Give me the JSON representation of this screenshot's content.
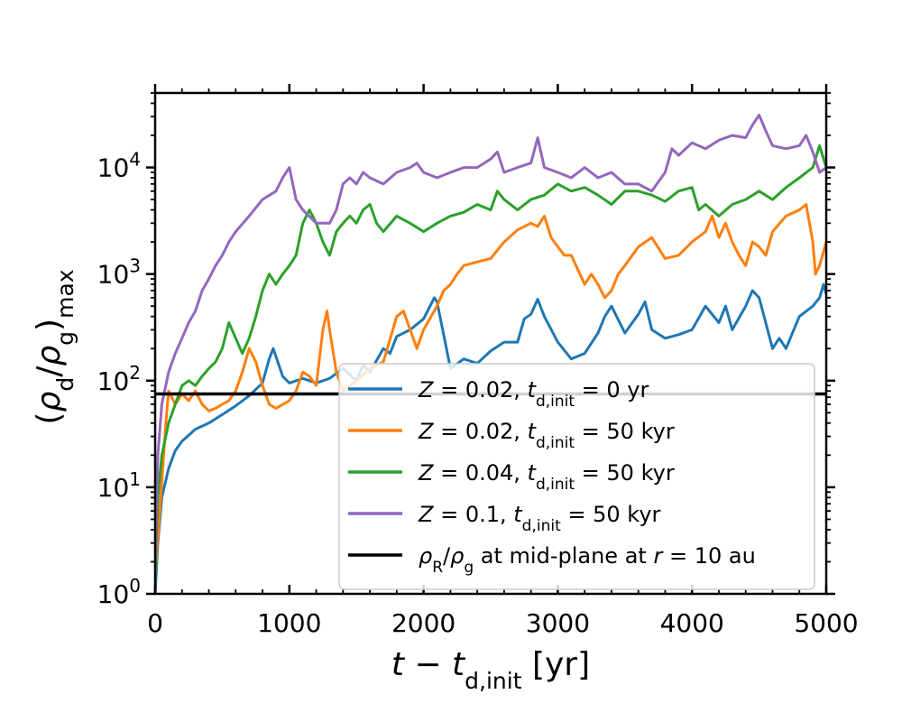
{
  "chart_data": {
    "type": "line",
    "title": "",
    "xlabel": "t − t_d,init [yr]",
    "ylabel": "(ρ_d/ρ_g)_max",
    "yscale": "log",
    "xlim": [
      0,
      5000
    ],
    "ylim": [
      1,
      50000
    ],
    "xticks": [
      0,
      1000,
      2000,
      3000,
      4000,
      5000
    ],
    "xtick_labels": [
      "0",
      "1000",
      "2000",
      "3000",
      "4000",
      "5000"
    ],
    "yticks": [
      1,
      10,
      100,
      1000,
      10000
    ],
    "grid": false,
    "legend_position": "lower-right",
    "threshold_line": {
      "name": "ρ_R/ρ_g at mid-plane at r = 10 au",
      "value": 75,
      "color": "#000000"
    },
    "series": [
      {
        "name": "Z = 0.02, t_d,init = 0 yr",
        "color": "#1f77b4",
        "points": [
          [
            0,
            1
          ],
          [
            20,
            3
          ],
          [
            50,
            8
          ],
          [
            100,
            15
          ],
          [
            150,
            22
          ],
          [
            200,
            27
          ],
          [
            300,
            35
          ],
          [
            400,
            40
          ],
          [
            500,
            48
          ],
          [
            600,
            58
          ],
          [
            700,
            72
          ],
          [
            800,
            95
          ],
          [
            850,
            160
          ],
          [
            880,
            200
          ],
          [
            950,
            110
          ],
          [
            1000,
            95
          ],
          [
            1100,
            105
          ],
          [
            1200,
            95
          ],
          [
            1300,
            105
          ],
          [
            1400,
            130
          ],
          [
            1500,
            100
          ],
          [
            1550,
            140
          ],
          [
            1600,
            120
          ],
          [
            1700,
            200
          ],
          [
            1750,
            180
          ],
          [
            1800,
            260
          ],
          [
            1900,
            300
          ],
          [
            2000,
            380
          ],
          [
            2080,
            600
          ],
          [
            2100,
            550
          ],
          [
            2200,
            130
          ],
          [
            2300,
            160
          ],
          [
            2400,
            145
          ],
          [
            2500,
            190
          ],
          [
            2600,
            230
          ],
          [
            2700,
            230
          ],
          [
            2750,
            380
          ],
          [
            2800,
            420
          ],
          [
            2850,
            580
          ],
          [
            2900,
            400
          ],
          [
            3000,
            230
          ],
          [
            3100,
            160
          ],
          [
            3200,
            180
          ],
          [
            3300,
            280
          ],
          [
            3350,
            400
          ],
          [
            3400,
            500
          ],
          [
            3500,
            280
          ],
          [
            3600,
            420
          ],
          [
            3650,
            550
          ],
          [
            3700,
            300
          ],
          [
            3800,
            250
          ],
          [
            3900,
            270
          ],
          [
            4000,
            300
          ],
          [
            4100,
            500
          ],
          [
            4200,
            350
          ],
          [
            4250,
            500
          ],
          [
            4300,
            300
          ],
          [
            4400,
            500
          ],
          [
            4450,
            700
          ],
          [
            4500,
            600
          ],
          [
            4600,
            200
          ],
          [
            4650,
            250
          ],
          [
            4700,
            200
          ],
          [
            4800,
            400
          ],
          [
            4900,
            500
          ],
          [
            4950,
            600
          ],
          [
            4980,
            800
          ],
          [
            5000,
            650
          ]
        ]
      },
      {
        "name": "Z = 0.02, t_d,init = 50 kyr",
        "color": "#ff7f0e",
        "points": [
          [
            0,
            1.5
          ],
          [
            30,
            5
          ],
          [
            80,
            40
          ],
          [
            100,
            80
          ],
          [
            150,
            60
          ],
          [
            200,
            75
          ],
          [
            250,
            65
          ],
          [
            300,
            80
          ],
          [
            350,
            60
          ],
          [
            400,
            52
          ],
          [
            450,
            55
          ],
          [
            500,
            60
          ],
          [
            550,
            65
          ],
          [
            600,
            80
          ],
          [
            650,
            120
          ],
          [
            700,
            200
          ],
          [
            750,
            150
          ],
          [
            800,
            90
          ],
          [
            850,
            60
          ],
          [
            900,
            55
          ],
          [
            1000,
            65
          ],
          [
            1050,
            80
          ],
          [
            1100,
            120
          ],
          [
            1150,
            110
          ],
          [
            1200,
            90
          ],
          [
            1250,
            300
          ],
          [
            1280,
            450
          ],
          [
            1300,
            300
          ],
          [
            1350,
            120
          ],
          [
            1400,
            80
          ],
          [
            1500,
            100
          ],
          [
            1600,
            130
          ],
          [
            1700,
            150
          ],
          [
            1800,
            400
          ],
          [
            1850,
            450
          ],
          [
            1900,
            300
          ],
          [
            1950,
            200
          ],
          [
            2000,
            300
          ],
          [
            2100,
            500
          ],
          [
            2150,
            700
          ],
          [
            2200,
            800
          ],
          [
            2250,
            1000
          ],
          [
            2300,
            1200
          ],
          [
            2400,
            1300
          ],
          [
            2500,
            1400
          ],
          [
            2600,
            2000
          ],
          [
            2700,
            2600
          ],
          [
            2800,
            3000
          ],
          [
            2850,
            2800
          ],
          [
            2900,
            3500
          ],
          [
            2950,
            2200
          ],
          [
            3000,
            1800
          ],
          [
            3050,
            1500
          ],
          [
            3100,
            1500
          ],
          [
            3200,
            800
          ],
          [
            3250,
            1000
          ],
          [
            3300,
            800
          ],
          [
            3350,
            600
          ],
          [
            3400,
            700
          ],
          [
            3450,
            1000
          ],
          [
            3500,
            1200
          ],
          [
            3600,
            1800
          ],
          [
            3700,
            2200
          ],
          [
            3800,
            1400
          ],
          [
            3900,
            1500
          ],
          [
            4000,
            2000
          ],
          [
            4100,
            2500
          ],
          [
            4150,
            3500
          ],
          [
            4200,
            2200
          ],
          [
            4250,
            3000
          ],
          [
            4300,
            2000
          ],
          [
            4350,
            1500
          ],
          [
            4400,
            1200
          ],
          [
            4450,
            2000
          ],
          [
            4500,
            1800
          ],
          [
            4550,
            1500
          ],
          [
            4600,
            2500
          ],
          [
            4700,
            3500
          ],
          [
            4800,
            4000
          ],
          [
            4850,
            4500
          ],
          [
            4900,
            2000
          ],
          [
            4920,
            1000
          ],
          [
            4950,
            1200
          ],
          [
            5000,
            2000
          ]
        ]
      },
      {
        "name": "Z = 0.04, t_d,init = 50 kyr",
        "color": "#2ca02c",
        "points": [
          [
            0,
            1.5
          ],
          [
            20,
            8
          ],
          [
            50,
            20
          ],
          [
            100,
            40
          ],
          [
            150,
            60
          ],
          [
            200,
            90
          ],
          [
            250,
            100
          ],
          [
            300,
            90
          ],
          [
            350,
            110
          ],
          [
            400,
            130
          ],
          [
            450,
            150
          ],
          [
            500,
            200
          ],
          [
            550,
            350
          ],
          [
            600,
            250
          ],
          [
            650,
            180
          ],
          [
            700,
            250
          ],
          [
            750,
            400
          ],
          [
            800,
            700
          ],
          [
            850,
            1000
          ],
          [
            900,
            800
          ],
          [
            950,
            1000
          ],
          [
            1000,
            1200
          ],
          [
            1050,
            1500
          ],
          [
            1100,
            3000
          ],
          [
            1150,
            4000
          ],
          [
            1200,
            3000
          ],
          [
            1250,
            2000
          ],
          [
            1300,
            1500
          ],
          [
            1350,
            2500
          ],
          [
            1400,
            3000
          ],
          [
            1450,
            3500
          ],
          [
            1500,
            3000
          ],
          [
            1550,
            4000
          ],
          [
            1600,
            4500
          ],
          [
            1650,
            3000
          ],
          [
            1700,
            2500
          ],
          [
            1800,
            3500
          ],
          [
            1900,
            3000
          ],
          [
            2000,
            2500
          ],
          [
            2100,
            3000
          ],
          [
            2200,
            3500
          ],
          [
            2300,
            3800
          ],
          [
            2400,
            4500
          ],
          [
            2500,
            4000
          ],
          [
            2550,
            6000
          ],
          [
            2600,
            5000
          ],
          [
            2700,
            4000
          ],
          [
            2800,
            5000
          ],
          [
            2900,
            5500
          ],
          [
            3000,
            7000
          ],
          [
            3100,
            6000
          ],
          [
            3200,
            6500
          ],
          [
            3300,
            5500
          ],
          [
            3400,
            4500
          ],
          [
            3500,
            6000
          ],
          [
            3600,
            6000
          ],
          [
            3700,
            5500
          ],
          [
            3800,
            4800
          ],
          [
            3900,
            6000
          ],
          [
            4000,
            6500
          ],
          [
            4050,
            4000
          ],
          [
            4100,
            4500
          ],
          [
            4200,
            3500
          ],
          [
            4300,
            4500
          ],
          [
            4400,
            5000
          ],
          [
            4500,
            6000
          ],
          [
            4600,
            5000
          ],
          [
            4700,
            6500
          ],
          [
            4800,
            8000
          ],
          [
            4900,
            10000
          ],
          [
            4950,
            16000
          ],
          [
            5000,
            10000
          ]
        ]
      },
      {
        "name": "Z = 0.1, t_d,init = 50 kyr",
        "color": "#9467bd",
        "points": [
          [
            0,
            2
          ],
          [
            20,
            20
          ],
          [
            50,
            60
          ],
          [
            100,
            120
          ],
          [
            150,
            180
          ],
          [
            200,
            250
          ],
          [
            250,
            350
          ],
          [
            300,
            450
          ],
          [
            350,
            700
          ],
          [
            400,
            900
          ],
          [
            450,
            1200
          ],
          [
            500,
            1500
          ],
          [
            550,
            2000
          ],
          [
            600,
            2500
          ],
          [
            700,
            3500
          ],
          [
            800,
            5000
          ],
          [
            900,
            6000
          ],
          [
            950,
            8000
          ],
          [
            1000,
            10000
          ],
          [
            1050,
            5000
          ],
          [
            1100,
            4000
          ],
          [
            1200,
            3000
          ],
          [
            1300,
            3000
          ],
          [
            1350,
            4000
          ],
          [
            1400,
            7000
          ],
          [
            1450,
            8000
          ],
          [
            1500,
            7000
          ],
          [
            1550,
            9000
          ],
          [
            1600,
            8000
          ],
          [
            1700,
            7000
          ],
          [
            1800,
            9000
          ],
          [
            1900,
            10000
          ],
          [
            1950,
            11000
          ],
          [
            2000,
            9000
          ],
          [
            2100,
            8000
          ],
          [
            2200,
            9000
          ],
          [
            2300,
            10000
          ],
          [
            2400,
            10000
          ],
          [
            2500,
            12000
          ],
          [
            2550,
            14000
          ],
          [
            2600,
            9000
          ],
          [
            2700,
            10000
          ],
          [
            2800,
            11000
          ],
          [
            2850,
            19000
          ],
          [
            2900,
            10000
          ],
          [
            3000,
            9000
          ],
          [
            3100,
            8000
          ],
          [
            3200,
            10000
          ],
          [
            3300,
            8000
          ],
          [
            3400,
            9000
          ],
          [
            3500,
            7000
          ],
          [
            3600,
            7000
          ],
          [
            3700,
            6000
          ],
          [
            3800,
            9000
          ],
          [
            3850,
            15000
          ],
          [
            3900,
            13000
          ],
          [
            4000,
            17000
          ],
          [
            4100,
            15000
          ],
          [
            4200,
            18000
          ],
          [
            4300,
            20000
          ],
          [
            4400,
            19000
          ],
          [
            4450,
            25000
          ],
          [
            4500,
            31000
          ],
          [
            4550,
            22000
          ],
          [
            4600,
            16000
          ],
          [
            4700,
            15000
          ],
          [
            4800,
            16000
          ],
          [
            4850,
            20000
          ],
          [
            4900,
            14000
          ],
          [
            4950,
            9000
          ],
          [
            5000,
            10000
          ]
        ]
      }
    ]
  }
}
